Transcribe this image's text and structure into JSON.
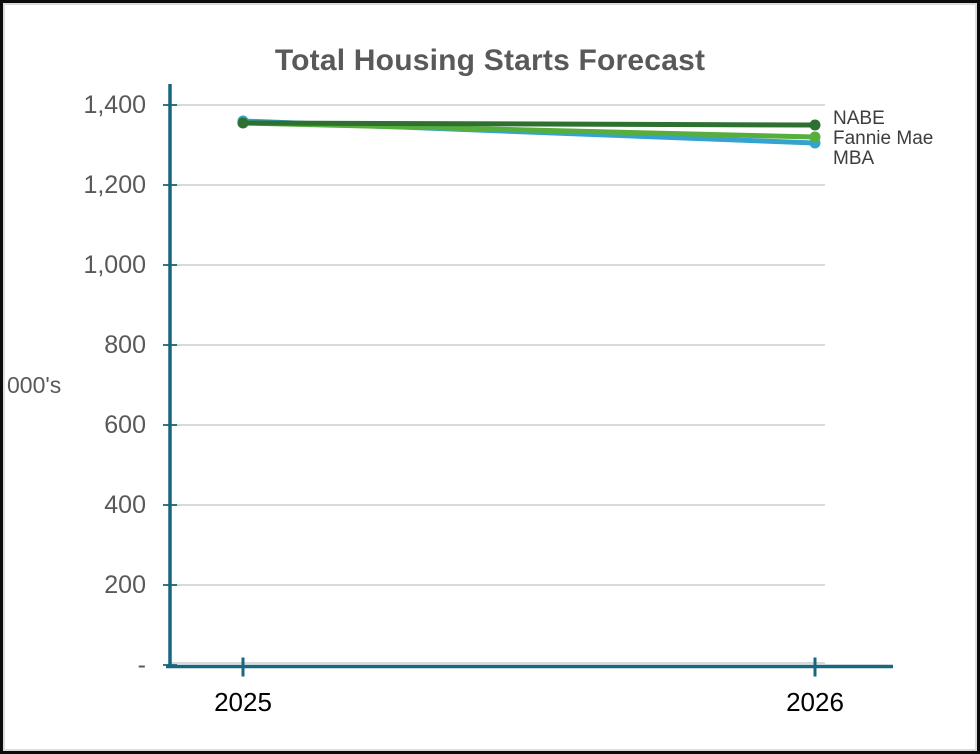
{
  "title": "Total Housing Starts Forecast",
  "y_axis": {
    "label": "000's",
    "tick_labels": [
      "-",
      "200",
      "400",
      "600",
      "800",
      "1,000",
      "1,200",
      "1,400"
    ],
    "tick_values": [
      0,
      200,
      400,
      600,
      800,
      1000,
      1200,
      1400
    ]
  },
  "x_axis": {
    "tick_labels": [
      "2025",
      "2026"
    ]
  },
  "legend": [
    "NABE",
    "Fannie Mae",
    "MBA"
  ],
  "chart_data": {
    "type": "line",
    "title": "Total Housing Starts Forecast",
    "xlabel": "",
    "ylabel": "000's",
    "categories": [
      "2025",
      "2026"
    ],
    "series": [
      {
        "name": "NABE",
        "values": [
          1355,
          1350
        ],
        "color": "#2d7030"
      },
      {
        "name": "Fannie Mae",
        "values": [
          1355,
          1320
        ],
        "color": "#57ae3d"
      },
      {
        "name": "MBA",
        "values": [
          1360,
          1305
        ],
        "color": "#35a3cd"
      }
    ],
    "ylim": [
      0,
      1450
    ],
    "yticks": [
      0,
      200,
      400,
      600,
      800,
      1000,
      1200,
      1400
    ],
    "grid": true,
    "legend_position": "right-of-line-ends",
    "colors": {
      "axis": "#19677f",
      "grid": "#d9d9d9",
      "title_text": "#595959",
      "tick_text": "#595959",
      "xtick_text": "#000000",
      "legend_text": "#3d3d3d"
    }
  }
}
